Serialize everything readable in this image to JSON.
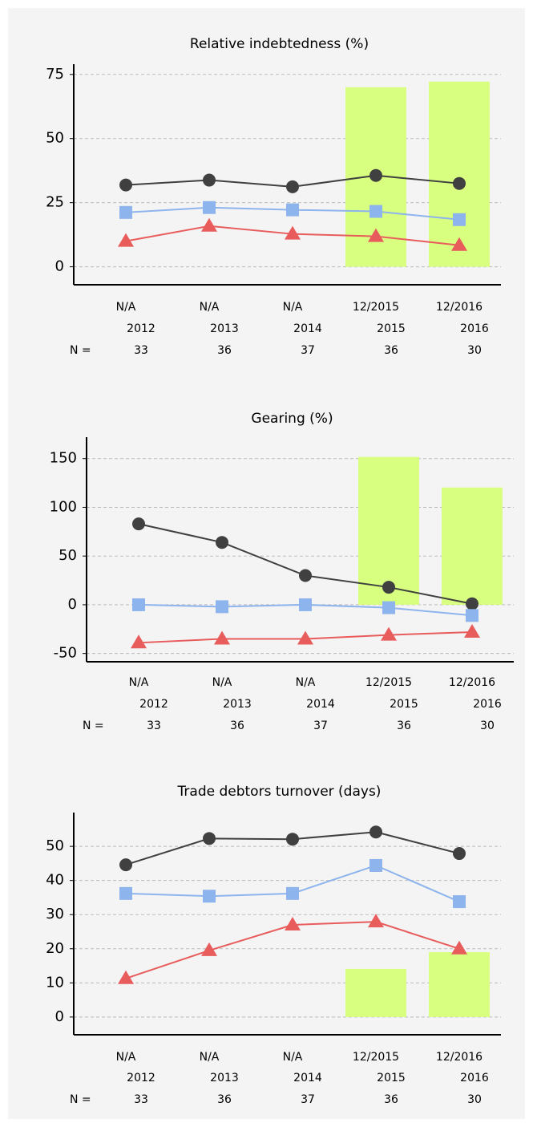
{
  "chart_data": [
    {
      "type": "line",
      "title": "Relative indebtedness (%)",
      "categories": [
        "N/A",
        "N/A",
        "N/A",
        "12/2015",
        "12/2016"
      ],
      "years": [
        "2012",
        "2013",
        "2014",
        "2015",
        "2016"
      ],
      "n_label": "N =",
      "n_values": [
        33,
        36,
        37,
        36,
        30
      ],
      "ylim": [
        -7,
        79
      ],
      "yticks": [
        0,
        25,
        50,
        75
      ],
      "grid": true,
      "series": [
        {
          "type": "bar",
          "color": "#d8ff80",
          "values": [
            null,
            null,
            null,
            70,
            72.2
          ]
        },
        {
          "type": "line",
          "marker": "circle",
          "color": "#404040",
          "values": [
            31.9,
            33.8,
            31.2,
            35.6,
            32.5
          ]
        },
        {
          "type": "line",
          "marker": "square",
          "color": "#8db4ec",
          "values": [
            21.2,
            23.1,
            22.2,
            21.6,
            18.4
          ]
        },
        {
          "type": "line",
          "marker": "triangle",
          "color": "#e85c5c",
          "values": [
            10,
            15.9,
            12.8,
            11.9,
            8.4
          ]
        }
      ]
    },
    {
      "type": "line",
      "title": "Gearing (%)",
      "categories": [
        "N/A",
        "N/A",
        "N/A",
        "12/2015",
        "12/2016"
      ],
      "years": [
        "2012",
        "2013",
        "2014",
        "2015",
        "2016"
      ],
      "n_label": "N =",
      "n_values": [
        33,
        36,
        37,
        36,
        30
      ],
      "ylim": [
        -58.5,
        172
      ],
      "yticks": [
        -50,
        0,
        50,
        100,
        150
      ],
      "grid": true,
      "series": [
        {
          "type": "bar",
          "color": "#d8ff80",
          "values": [
            null,
            null,
            null,
            151.7,
            120.3
          ]
        },
        {
          "type": "line",
          "marker": "circle",
          "color": "#404040",
          "values": [
            83,
            64,
            30,
            18,
            1
          ]
        },
        {
          "type": "line",
          "marker": "square",
          "color": "#8db4ec",
          "values": [
            0,
            -2,
            0,
            -3,
            -11
          ]
        },
        {
          "type": "line",
          "marker": "triangle",
          "color": "#e85c5c",
          "values": [
            -39,
            -35,
            -35,
            -31,
            -28
          ]
        }
      ]
    },
    {
      "type": "line",
      "title": "Trade debtors turnover (days)",
      "categories": [
        "N/A",
        "N/A",
        "N/A",
        "12/2015",
        "12/2016"
      ],
      "years": [
        "2012",
        "2013",
        "2014",
        "2015",
        "2016"
      ],
      "n_label": "N =",
      "n_values": [
        33,
        36,
        37,
        36,
        30
      ],
      "ylim": [
        -5.2,
        59.9
      ],
      "yticks": [
        0,
        10,
        20,
        30,
        40,
        50
      ],
      "grid": true,
      "series": [
        {
          "type": "bar",
          "color": "#d8ff80",
          "values": [
            null,
            null,
            null,
            14.1,
            19
          ]
        },
        {
          "type": "line",
          "marker": "circle",
          "color": "#404040",
          "values": [
            44.6,
            52.3,
            52.1,
            54.2,
            47.9
          ]
        },
        {
          "type": "line",
          "marker": "square",
          "color": "#8db4ec",
          "values": [
            36.2,
            35.4,
            36.2,
            44.4,
            33.8
          ]
        },
        {
          "type": "line",
          "marker": "triangle",
          "color": "#e85c5c",
          "values": [
            11.3,
            19.5,
            27,
            27.9,
            20
          ]
        }
      ]
    }
  ]
}
